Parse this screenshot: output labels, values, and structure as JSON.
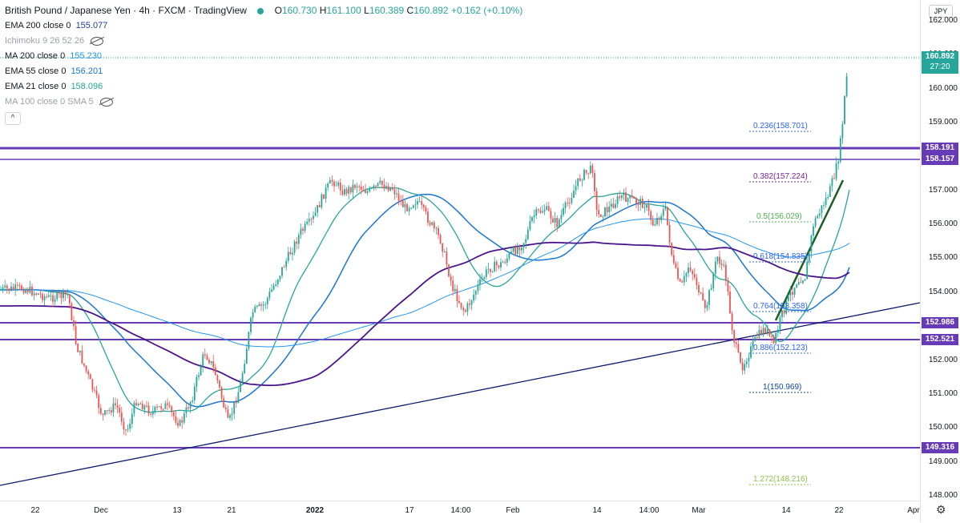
{
  "legend": {
    "title": "British Pound / Japanese Yen · 4h · FXCM · TradingView",
    "o_label": "O",
    "o": "160.730",
    "h_label": "H",
    "h": "161.100",
    "l_label": "L",
    "l": "160.389",
    "c_label": "C",
    "c": "160.892",
    "change": "+0.162 (+0.10%)",
    "indicators": [
      {
        "label": "EMA 200 close 0",
        "value": "155.077",
        "color": "#1e3f9a"
      },
      {
        "label": "Ichimoku 9 26 52 26",
        "value": "",
        "color": "#9aa0a8"
      },
      {
        "label": "MA 200 close 0",
        "value": "155.230",
        "color": "#2196f3"
      },
      {
        "label": "EMA 55 close 0",
        "value": "156.201",
        "color": "#1976d2"
      },
      {
        "label": "EMA 21 close 0",
        "value": "158.096",
        "color": "#26a69a"
      },
      {
        "label": "MA 100 close 0 SMA 5",
        "value": "",
        "color": "#9aa0a8"
      }
    ],
    "collapse_glyph": "^"
  },
  "price_axis": {
    "currency": "JPY",
    "ticks": [
      "162.000",
      "161.000",
      "160.000",
      "159.000",
      "158.000",
      "157.000",
      "156.000",
      "155.000",
      "154.000",
      "153.000",
      "152.000",
      "151.000",
      "150.000",
      "149.000",
      "148.000"
    ],
    "current_price": "160.892",
    "countdown": "27:20",
    "levels": [
      "158.191",
      "158.157",
      "152.986",
      "152.521",
      "149.316"
    ]
  },
  "time_axis": {
    "labels": [
      "22",
      "Dec",
      "13",
      "21",
      "2022",
      "17",
      "14:00",
      "Feb",
      "14",
      "14:00",
      "Mar",
      "14",
      "22",
      "Apr"
    ]
  },
  "fib_levels": [
    {
      "label": "0.236(158.701)",
      "color": "#2962ff"
    },
    {
      "label": "0.382(157.224)",
      "color": "#7b1fa2"
    },
    {
      "label": "0.5(156.029)",
      "color": "#4caf50"
    },
    {
      "label": "0.618(154.835)",
      "color": "#2962ff"
    },
    {
      "label": "0.764(153.358)",
      "color": "#2962ff"
    },
    {
      "label": "0.886(152.123)",
      "color": "#2962ff"
    },
    {
      "label": "1(150.969)",
      "color": "#0d47a1"
    },
    {
      "label": "1.272(148.216)",
      "color": "#8bc34a"
    }
  ],
  "colors": {
    "up": "#26a69a",
    "down": "#ef5350",
    "level": "#673ab7",
    "trend": "#0d1b6e"
  }
}
